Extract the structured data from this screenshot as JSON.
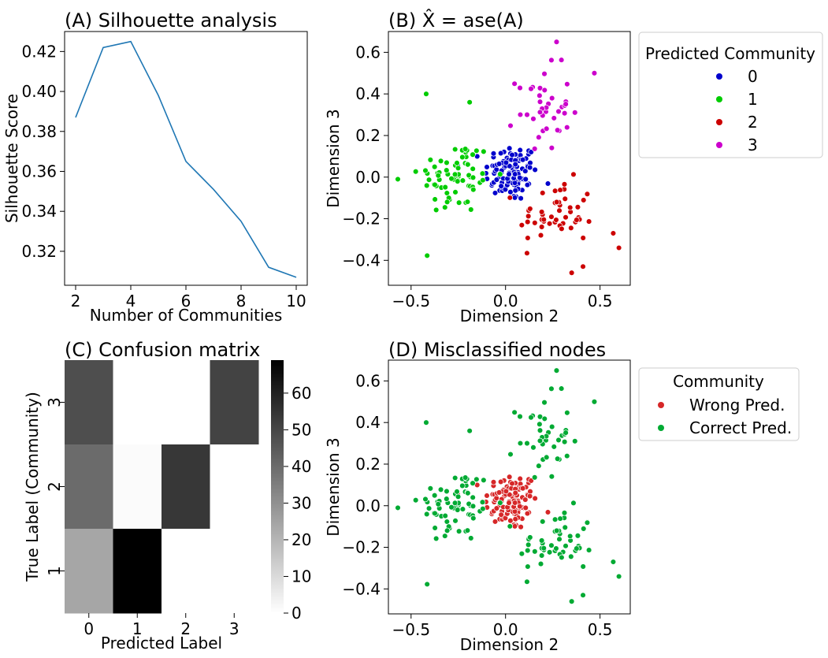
{
  "colors": {
    "line": "#1f77b4",
    "community_0": "#0000cc",
    "community_1": "#00cc00",
    "community_2": "#cc0000",
    "community_3": "#cc00cc",
    "wrong": "#d62728",
    "correct": "#00aa33"
  },
  "chart_data": [
    {
      "panel": "A",
      "type": "line",
      "title": "(A) Silhouette analysis",
      "xlabel": "Number of Communities",
      "ylabel": "Silhouette Score",
      "xlim": [
        1.6,
        10.4
      ],
      "ylim": [
        0.303,
        0.43
      ],
      "xticks": [
        2,
        4,
        6,
        8,
        10
      ],
      "yticks": [
        0.32,
        0.34,
        0.36,
        0.38,
        0.4,
        0.42
      ],
      "ytick_labels": [
        "0.32",
        "0.34",
        "0.36",
        "0.38",
        "0.40",
        "0.42"
      ],
      "grid": false,
      "x": [
        2,
        3,
        4,
        5,
        6,
        7,
        8,
        9,
        10
      ],
      "y": [
        0.387,
        0.422,
        0.425,
        0.398,
        0.365,
        0.351,
        0.335,
        0.312,
        0.307
      ]
    },
    {
      "panel": "B",
      "type": "scatter",
      "title": "(B) X̂ = ase(A)",
      "xlabel": "Dimension 2",
      "ylabel": "Dimension 3",
      "xlim": [
        -0.62,
        0.66
      ],
      "ylim": [
        -0.52,
        0.7
      ],
      "xticks": [
        -0.5,
        0.0,
        0.5
      ],
      "xtick_labels": [
        "−0.5",
        "0.0",
        "0.5"
      ],
      "yticks": [
        -0.4,
        -0.2,
        0.0,
        0.2,
        0.4,
        0.6
      ],
      "ytick_labels": [
        "−0.4",
        "−0.2",
        "0.0",
        "0.2",
        "0.4",
        "0.6"
      ],
      "grid": false,
      "legend": {
        "title": "Predicted Community",
        "placement": "outside right",
        "entries": [
          "0",
          "1",
          "2",
          "3"
        ]
      },
      "clusters": [
        {
          "label": "0",
          "n": 110,
          "cx": 0.03,
          "cy": 0.02,
          "sx": 0.07,
          "sy": 0.07
        },
        {
          "label": "1",
          "n": 70,
          "cx": -0.26,
          "cy": 0.0,
          "sx": 0.1,
          "sy": 0.09
        },
        {
          "label": "2",
          "n": 50,
          "cx": 0.27,
          "cy": -0.18,
          "sx": 0.1,
          "sy": 0.08
        },
        {
          "label": "3",
          "n": 40,
          "cx": 0.2,
          "cy": 0.33,
          "sx": 0.07,
          "sy": 0.1
        }
      ]
    },
    {
      "panel": "C",
      "type": "heatmap",
      "title": "(C) Confusion matrix",
      "xlabel": "Predicted Label",
      "ylabel": "True Label (Community)",
      "x_categories": [
        "0",
        "1",
        "2",
        "3"
      ],
      "y_categories": [
        "3",
        "2",
        "1"
      ],
      "values": [
        [
          48,
          0,
          0,
          51
        ],
        [
          40,
          1,
          54,
          0
        ],
        [
          24,
          69,
          0,
          0
        ]
      ],
      "colorbar": {
        "min": 0,
        "max": 69,
        "ticks": [
          0,
          10,
          20,
          30,
          40,
          50,
          60
        ],
        "colormap": "Greys"
      }
    },
    {
      "panel": "D",
      "type": "scatter",
      "title": "(D) Misclassified nodes",
      "xlabel": "Dimension 2",
      "ylabel": "Dimension 3",
      "xlim": [
        -0.62,
        0.66
      ],
      "ylim": [
        -0.52,
        0.7
      ],
      "xticks": [
        -0.5,
        0.0,
        0.5
      ],
      "xtick_labels": [
        "−0.5",
        "0.0",
        "0.5"
      ],
      "yticks": [
        -0.4,
        -0.2,
        0.0,
        0.2,
        0.4,
        0.6
      ],
      "ytick_labels": [
        "−0.4",
        "−0.2",
        "0.0",
        "0.2",
        "0.4",
        "0.6"
      ],
      "grid": false,
      "legend": {
        "title": "Community",
        "placement": "outside right",
        "entries": [
          "Wrong Pred.",
          "Correct Pred."
        ]
      },
      "note": "Same points as panel B; points of community 0 drawn as Wrong Pred., all others as Correct Pred."
    }
  ]
}
